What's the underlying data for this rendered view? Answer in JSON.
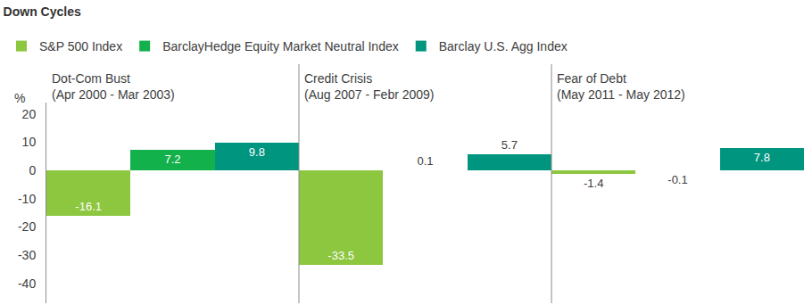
{
  "chart_data": {
    "type": "bar",
    "title": "Down Cycles",
    "y_label": "%",
    "categories": [
      "Dot-Com Bust\n(Apr 2000 - Mar 2003)",
      "Credit Crisis\n(Aug 2007 - Febr 2009)",
      "Fear of Debt\n(May 2011 - May 2012)"
    ],
    "series": [
      {
        "name": "S&P 500 Index",
        "color": "#8dc63f",
        "values": [
          -16.1,
          -33.5,
          -1.4
        ]
      },
      {
        "name": "BarclayHedge Equity Market Neutral Index",
        "color": "#13b14b",
        "values": [
          7.2,
          0.1,
          -0.1
        ]
      },
      {
        "name": "Barclay U.S. Agg Index",
        "color": "#00957f",
        "values": [
          9.8,
          5.7,
          7.8
        ]
      }
    ],
    "ylim": [
      -47,
      24
    ],
    "yticks": [
      -40,
      -30,
      -20,
      -10,
      0,
      10,
      20
    ],
    "grid": false,
    "legend": "top left",
    "data_labels": true,
    "tick_labels": "y"
  }
}
